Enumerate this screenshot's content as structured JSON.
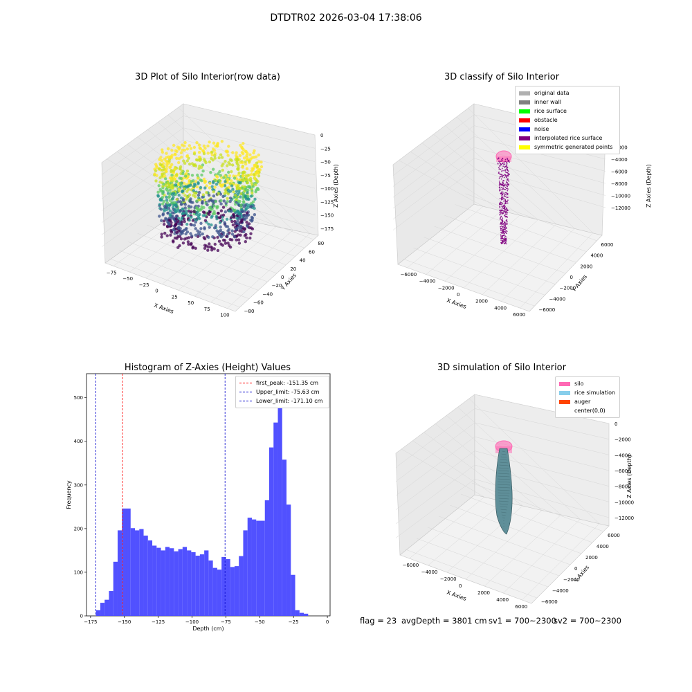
{
  "suptitle": "DTDTR02 2026-03-04 17:38:06",
  "colors": {
    "hist_bar": "#4b4bff",
    "first_peak_line": "#ff0000",
    "limit_line": "#0000cc",
    "viridis": [
      "#440154",
      "#3b528b",
      "#21918c",
      "#5ec962",
      "#c8e020",
      "#fde725"
    ]
  },
  "panels": {
    "raw": {
      "title": "3D Plot of Silo Interior(row data)",
      "xlabel": "X Axies",
      "ylabel": "Y Axies",
      "zlabel": "Z Axies (Depth)",
      "xticks": [
        "−75",
        "−50",
        "−25",
        "0",
        "25",
        "50",
        "75",
        "100"
      ],
      "yticks": [
        "−80",
        "−60",
        "−40",
        "−20",
        "0",
        "20",
        "40",
        "60",
        "80"
      ],
      "zticks": [
        "0",
        "−25",
        "−50",
        "−75",
        "−100",
        "−125",
        "−150",
        "−175"
      ]
    },
    "classify": {
      "title": "3D classify of Silo Interior",
      "xlabel": "X Axies",
      "ylabel": "Y Axies",
      "zlabel": "Z Axies (Depth)",
      "xticks": [
        "−6000",
        "−4000",
        "−2000",
        "0",
        "2000",
        "4000",
        "6000"
      ],
      "yticks": [
        "−6000",
        "−4000",
        "−2000",
        "0",
        "2000",
        "4000",
        "6000"
      ],
      "zticks": [
        "0",
        "−2000",
        "−4000",
        "−6000",
        "−8000",
        "−10000",
        "−12000"
      ],
      "legend": [
        {
          "label": "original data",
          "color": "#b0b0b0"
        },
        {
          "label": "inner wall",
          "color": "#808080"
        },
        {
          "label": "rice surface",
          "color": "#00ff00"
        },
        {
          "label": "obstacle",
          "color": "#ff0000"
        },
        {
          "label": "noise",
          "color": "#0000ff"
        },
        {
          "label": "interpolated rice surface",
          "color": "#800080"
        },
        {
          "label": "symmetric generated points",
          "color": "#ffff00"
        }
      ]
    },
    "simulation": {
      "title": "3D simulation of Silo Interior",
      "xlabel": "X Axies",
      "ylabel": "Y Axies",
      "zlabel": "Z Axies (Depth)",
      "xticks": [
        "−6000",
        "−4000",
        "−2000",
        "0",
        "2000",
        "4000",
        "6000"
      ],
      "yticks": [
        "−6000",
        "−4000",
        "−2000",
        "0",
        "2000",
        "4000",
        "6000"
      ],
      "zticks": [
        "0",
        "−2000",
        "−4000",
        "−6000",
        "−8000",
        "−10000",
        "−12000"
      ],
      "legend": [
        {
          "label": "silo",
          "color": "#ff69b4"
        },
        {
          "label": "rice simulation",
          "color": "#87ceeb"
        },
        {
          "label": "auger",
          "color": "#ff4500"
        },
        {
          "label": "center(0,0)",
          "color": "#ffffff"
        }
      ]
    }
  },
  "status": {
    "flag": "flag = 23",
    "avg_depth": "avgDepth = 3801 cm",
    "sv1": "sv1 = 700~2300",
    "sv2": "sv2 = 700~2300"
  },
  "chart_data": [
    {
      "type": "bar",
      "title": "Histogram of Z-Axies (Height) Values",
      "xlabel": "Depth (cm)",
      "ylabel": "Frequency",
      "xlim": [
        -178,
        2
      ],
      "ylim": [
        0,
        555
      ],
      "xticks": [
        -175,
        -150,
        -125,
        -100,
        -75,
        -50,
        -25,
        0
      ],
      "yticks": [
        0,
        100,
        200,
        300,
        400,
        500
      ],
      "bin_start": -171.0,
      "bin_width": 3.2,
      "values": [
        13,
        30,
        37,
        57,
        124,
        196,
        246,
        246,
        201,
        196,
        199,
        184,
        173,
        161,
        156,
        150,
        158,
        155,
        148,
        153,
        158,
        150,
        146,
        138,
        141,
        150,
        127,
        110,
        106,
        135,
        130,
        112,
        114,
        137,
        196,
        225,
        221,
        218,
        218,
        265,
        386,
        443,
        537,
        358,
        255,
        94,
        13,
        7,
        5
      ],
      "vlines": [
        {
          "label": "first_peak: -151.35 cm",
          "x": -151.35,
          "color": "#ff0000"
        },
        {
          "label": "Upper_limit: -75.63 cm",
          "x": -75.63,
          "color": "#0000cc"
        },
        {
          "label": "Lower_limit: -171.10 cm",
          "x": -171.1,
          "color": "#0000cc"
        }
      ],
      "legend": "upper right"
    }
  ]
}
